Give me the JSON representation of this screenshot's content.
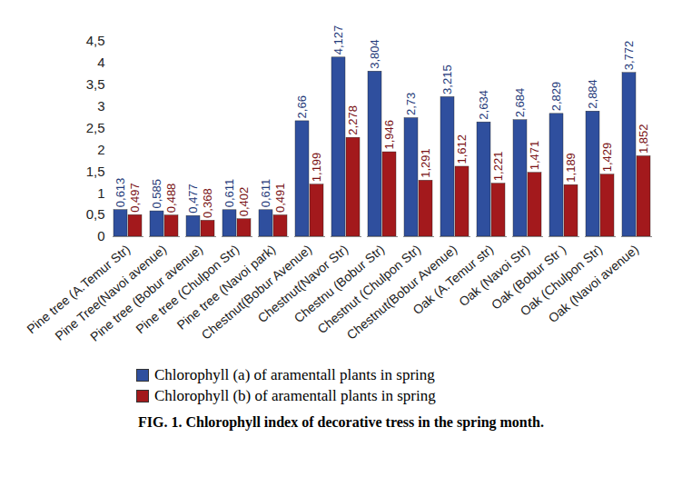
{
  "chart_data": {
    "type": "bar",
    "title": "FIG. 1. Chlorophyll index of decorative tress in the spring month.",
    "categories": [
      "Pine tree (A.Temur Str)",
      "Pine Tree(Navoi avenue)",
      "Pine tree (Bobur avenue)",
      "Pine tree (Chulpon Str)",
      "Pine tree (Navoi park)",
      "Chestnut(Bobur Avenue)",
      "Chestnut(Navor Str)",
      "Chestnu (Bobur Str)",
      "Chestnut (Chulpon Str)",
      "Chestnut(Bobur Avenue)",
      "Oak (A.Temur str)",
      "Oak (Navoi Str)",
      "Oak (Bobur Str )",
      "Oak (Chulpon Str)",
      "Oak (Navoi avenue)"
    ],
    "series": [
      {
        "name": "Chlorophyll (a) of aramentall plants in spring",
        "color": "#2f4f9e",
        "values": [
          0.613,
          0.585,
          0.477,
          0.611,
          0.611,
          2.66,
          4.127,
          3.804,
          2.73,
          3.215,
          2.634,
          2.684,
          2.829,
          2.884,
          3.772
        ],
        "value_labels": [
          "0,613",
          "0,585",
          "0,477",
          "0,611",
          "0,611",
          "2,66",
          "4,127",
          "3,804",
          "2,73",
          "3,215",
          "2,634",
          "2,684",
          "2,829",
          "2,884",
          "3,772"
        ]
      },
      {
        "name": "Chlorophyll (b) of aramentall plants in spring",
        "color": "#a3191c",
        "values": [
          0.497,
          0.488,
          0.368,
          0.402,
          0.491,
          1.199,
          2.278,
          1.946,
          1.291,
          1.612,
          1.221,
          1.471,
          1.189,
          1.429,
          1.852
        ],
        "value_labels": [
          "0,497",
          "0,488",
          "0,368",
          "0,402",
          "0,491",
          "1,199",
          "2,278",
          "1,946",
          "1,291",
          "1,612",
          "1,221",
          "1,471",
          "1,189",
          "1,429",
          "1,852"
        ]
      }
    ],
    "ylim": [
      0,
      4.5
    ],
    "yticks": [
      0,
      {
        "value": 0.5,
        "label": "0,5"
      },
      1,
      {
        "value": 1.5,
        "label": "1,5"
      },
      2,
      {
        "value": 2.5,
        "label": "2,5"
      },
      3,
      {
        "value": 3.5,
        "label": "3,5"
      },
      4,
      {
        "value": 4.5,
        "label": "4,5"
      }
    ],
    "grid": false,
    "data_labels": true,
    "legend": "bottom"
  }
}
